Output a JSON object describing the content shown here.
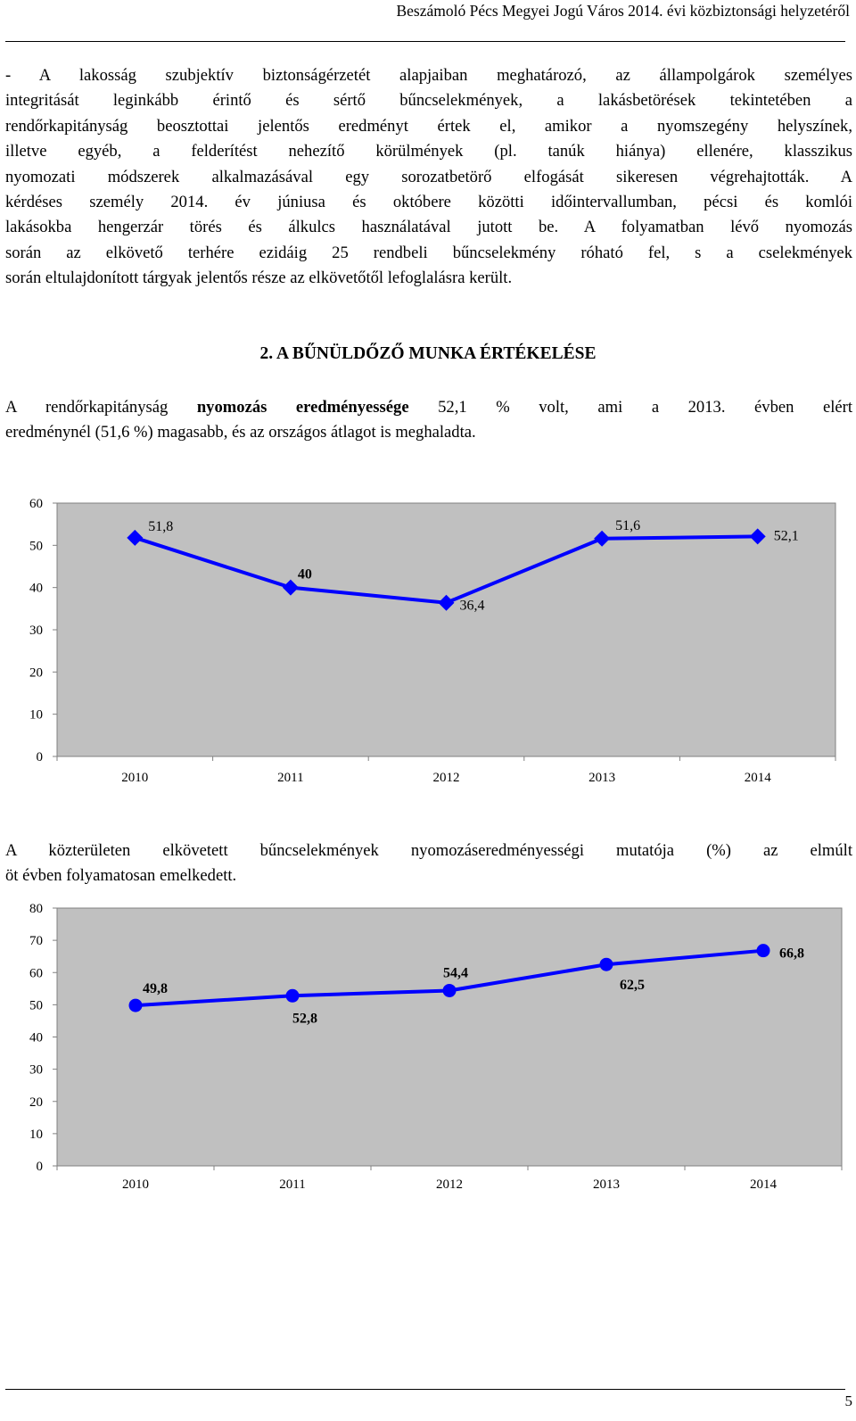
{
  "header": {
    "title": "Beszámoló Pécs Megyei Jogú Város 2014. évi közbiztonsági helyzetéről"
  },
  "paragraph1": {
    "lines": [
      "- A lakosság szubjektív biztonságérzetét alapjaiban meghatározó, az állampolgárok személyes",
      "integritását leginkább érintő és sértő bűncselekmények, a lakásbetörések tekintetében a",
      "rendőrkapitányság beosztottai jelentős eredményt értek el, amikor a nyomszegény helyszínek,",
      "illetve egyéb, a felderítést nehezítő körülmények (pl. tanúk hiánya) ellenére, klasszikus",
      "nyomozati módszerek alkalmazásával egy sorozatbetörő elfogását sikeresen végrehajtották. A",
      "kérdéses személy 2014. év júniusa és októbere közötti időintervallumban, pécsi és komlói",
      "lakásokba hengerzár törés és álkulcs használatával jutott be. A folyamatban lévő nyomozás",
      "során az elkövető terhére ezidáig 25 rendbeli bűncselekmény róható fel, s a cselekmények",
      "során eltulajdonított tárgyak jelentős része az elkövetőtől lefoglalásra került."
    ]
  },
  "section_heading": "2. A BŰNÜLDŐZŐ MUNKA ÉRTÉKELÉSE",
  "paragraph2": {
    "line1_pre": "A rendőrkapitányság ",
    "line1_bold": "nyomozás eredményessége",
    "line1_post": " 52,1 % volt, ami a 2013. évben elért",
    "line2": "eredménynél (51,6 %) magasabb, és az országos átlagot is meghaladta."
  },
  "paragraph3": {
    "lines": [
      "A közterületen elkövetett bűncselekmények nyomozáseredményességi mutatója (%) az elmúlt",
      "öt évben folyamatosan emelkedett."
    ]
  },
  "chart_data": [
    {
      "type": "line",
      "categories": [
        "2010",
        "2011",
        "2012",
        "2013",
        "2014"
      ],
      "series": [
        {
          "values": [
            51.8,
            40,
            36.4,
            51.6,
            52.1
          ],
          "labels": [
            "51,8",
            "40",
            "36,4",
            "51,6",
            "52,1"
          ],
          "marker": "diamond"
        }
      ],
      "yticks": [
        "0",
        "10",
        "20",
        "30",
        "40",
        "50",
        "60"
      ],
      "ylim": [
        0,
        60
      ],
      "plot_background": "#c0c0c0",
      "line_color": "#0000ff",
      "grid": false
    },
    {
      "type": "line",
      "categories": [
        "2010",
        "2011",
        "2012",
        "2013",
        "2014"
      ],
      "series": [
        {
          "values": [
            49.8,
            52.8,
            54.4,
            62.5,
            66.8
          ],
          "labels": [
            "49,8",
            "52,8",
            "54,4",
            "62,5",
            "66,8"
          ],
          "marker": "circle"
        }
      ],
      "yticks": [
        "0",
        "10",
        "20",
        "30",
        "40",
        "50",
        "60",
        "70",
        "80"
      ],
      "ylim": [
        0,
        80
      ],
      "plot_background": "#c0c0c0",
      "line_color": "#0000ff",
      "grid": false
    }
  ],
  "page_number": "5"
}
